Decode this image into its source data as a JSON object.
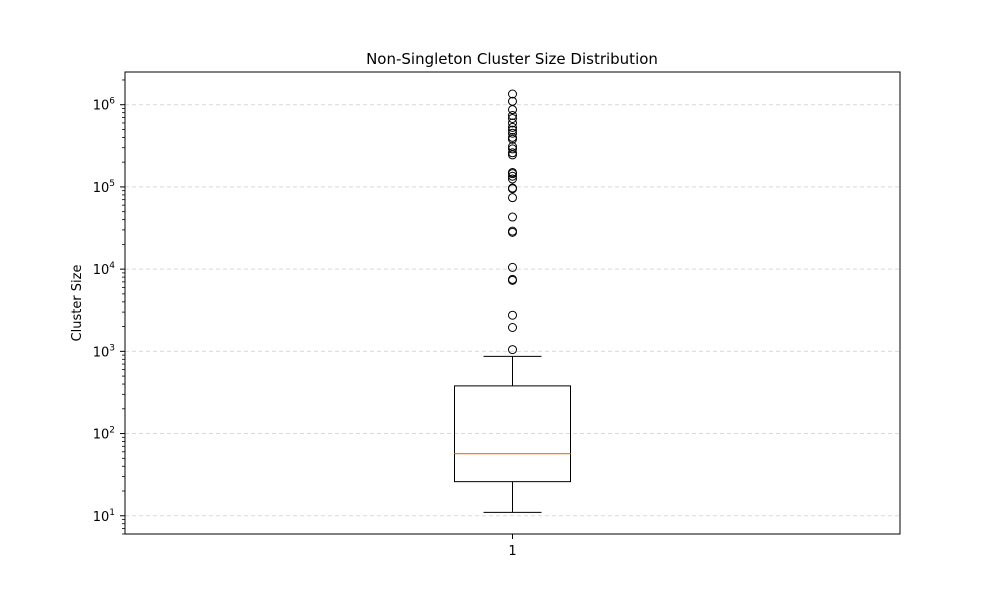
{
  "chart_data": {
    "type": "boxplot",
    "title": "Non-Singleton Cluster Size Distribution",
    "xlabel": "",
    "ylabel": "Cluster Size",
    "y_scale": "log",
    "ylim": [
      6,
      2500000
    ],
    "y_ticks": [
      {
        "value": 10,
        "base": "10",
        "exp": "1"
      },
      {
        "value": 100,
        "base": "10",
        "exp": "2"
      },
      {
        "value": 1000,
        "base": "10",
        "exp": "3"
      },
      {
        "value": 10000,
        "base": "10",
        "exp": "4"
      },
      {
        "value": 100000,
        "base": "10",
        "exp": "5"
      },
      {
        "value": 1000000,
        "base": "10",
        "exp": "6"
      }
    ],
    "grid": "y-dashed",
    "categories": [
      "1"
    ],
    "boxes": [
      {
        "category": "1",
        "whisker_low": 11,
        "q1": 26,
        "median": 57,
        "q3": 380,
        "whisker_high": 870,
        "outliers": [
          1050,
          1950,
          2750,
          7300,
          7500,
          10500,
          28000,
          29000,
          43000,
          74000,
          95000,
          97000,
          125000,
          135000,
          145000,
          150000,
          245000,
          260000,
          290000,
          310000,
          380000,
          400000,
          450000,
          490000,
          530000,
          600000,
          680000,
          740000,
          870000,
          1100000,
          1350000
        ]
      }
    ],
    "colors": {
      "box": "#000000",
      "median": "#ff7f0e",
      "grid": "#d9d9d9",
      "outlier_edge": "#000000"
    }
  }
}
